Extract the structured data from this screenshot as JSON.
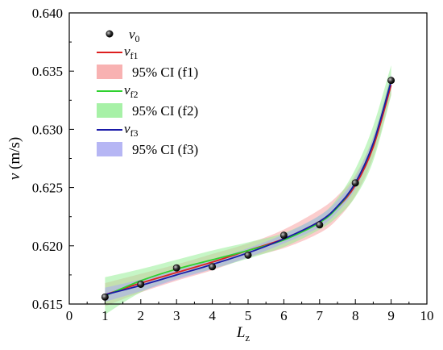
{
  "chart_data": {
    "type": "scatter",
    "xlabel": {
      "main": "L",
      "sub": "z"
    },
    "ylabel": "v (m/s)",
    "xlim": [
      0,
      10
    ],
    "ylim": [
      0.615,
      0.64
    ],
    "xticks": [
      "0",
      "1",
      "2",
      "3",
      "4",
      "5",
      "6",
      "7",
      "8",
      "9",
      "10"
    ],
    "yticks": [
      "0.615",
      "0.620",
      "0.625",
      "0.630",
      "0.635",
      "0.640"
    ],
    "grid": false,
    "legend_position": "top-left",
    "points": {
      "name": "v0",
      "x": [
        1,
        2,
        3,
        4,
        5,
        6,
        7,
        8,
        9
      ],
      "y": [
        0.6156,
        0.6167,
        0.6181,
        0.6182,
        0.6192,
        0.6209,
        0.6218,
        0.6254,
        0.6342
      ]
    },
    "fits": [
      {
        "label_main": "v",
        "label_sub": "f1",
        "color": "#dd1f1f",
        "band_color": "#f7a4a4",
        "ci_label": "95% CI (f1)",
        "x": [
          1,
          2,
          3,
          4,
          5,
          6,
          7,
          7.5,
          8,
          8.5,
          9
        ],
        "y": [
          0.6158,
          0.6168,
          0.6177,
          0.6186,
          0.6196,
          0.6206,
          0.6221,
          0.6233,
          0.6252,
          0.6285,
          0.6338
        ],
        "upper": [
          0.6168,
          0.6176,
          0.6184,
          0.6193,
          0.6202,
          0.6214,
          0.6231,
          0.6243,
          0.6261,
          0.6294,
          0.6346
        ],
        "lower": [
          0.6148,
          0.616,
          0.617,
          0.6179,
          0.619,
          0.6198,
          0.6211,
          0.6223,
          0.6243,
          0.6276,
          0.633
        ]
      },
      {
        "label_main": "v",
        "label_sub": "f2",
        "color": "#2ed12e",
        "band_color": "#98ee98",
        "ci_label": "95% CI (f2)",
        "x": [
          1,
          2,
          3,
          4,
          5,
          6,
          7,
          7.5,
          8,
          8.5,
          9
        ],
        "y": [
          0.6157,
          0.617,
          0.618,
          0.6188,
          0.6196,
          0.6205,
          0.622,
          0.6233,
          0.6254,
          0.6288,
          0.6342
        ],
        "upper": [
          0.6173,
          0.618,
          0.6188,
          0.6196,
          0.6203,
          0.6211,
          0.6226,
          0.6241,
          0.6266,
          0.6303,
          0.6355
        ],
        "lower": [
          0.6141,
          0.616,
          0.6172,
          0.618,
          0.6189,
          0.6199,
          0.6214,
          0.6225,
          0.6242,
          0.6273,
          0.6329
        ]
      },
      {
        "label_main": "v",
        "label_sub": "f3",
        "color": "#1a1aa8",
        "band_color": "#a9a9f2",
        "ci_label": "95% CI (f3)",
        "x": [
          1,
          2,
          3,
          4,
          5,
          6,
          7,
          7.5,
          8,
          8.5,
          9
        ],
        "y": [
          0.6158,
          0.6166,
          0.6175,
          0.6184,
          0.6194,
          0.6206,
          0.6221,
          0.6234,
          0.6254,
          0.6288,
          0.6341
        ],
        "upper": [
          0.6164,
          0.6171,
          0.6179,
          0.6188,
          0.6198,
          0.621,
          0.6226,
          0.6239,
          0.6259,
          0.6293,
          0.6347
        ],
        "lower": [
          0.6152,
          0.6161,
          0.6171,
          0.618,
          0.619,
          0.6202,
          0.6216,
          0.6229,
          0.6249,
          0.6283,
          0.6335
        ]
      }
    ],
    "legend": [
      {
        "kind": "point",
        "main": "v",
        "sub": "0"
      },
      {
        "kind": "line",
        "series": 0,
        "main": "v",
        "sub": "f1"
      },
      {
        "kind": "band",
        "series": 0,
        "text": "95% CI (f1)"
      },
      {
        "kind": "line",
        "series": 1,
        "main": "v",
        "sub": "f2"
      },
      {
        "kind": "band",
        "series": 1,
        "text": "95% CI (f2)"
      },
      {
        "kind": "line",
        "series": 2,
        "main": "v",
        "sub": "f3"
      },
      {
        "kind": "band",
        "series": 2,
        "text": "95% CI (f3)"
      }
    ]
  }
}
